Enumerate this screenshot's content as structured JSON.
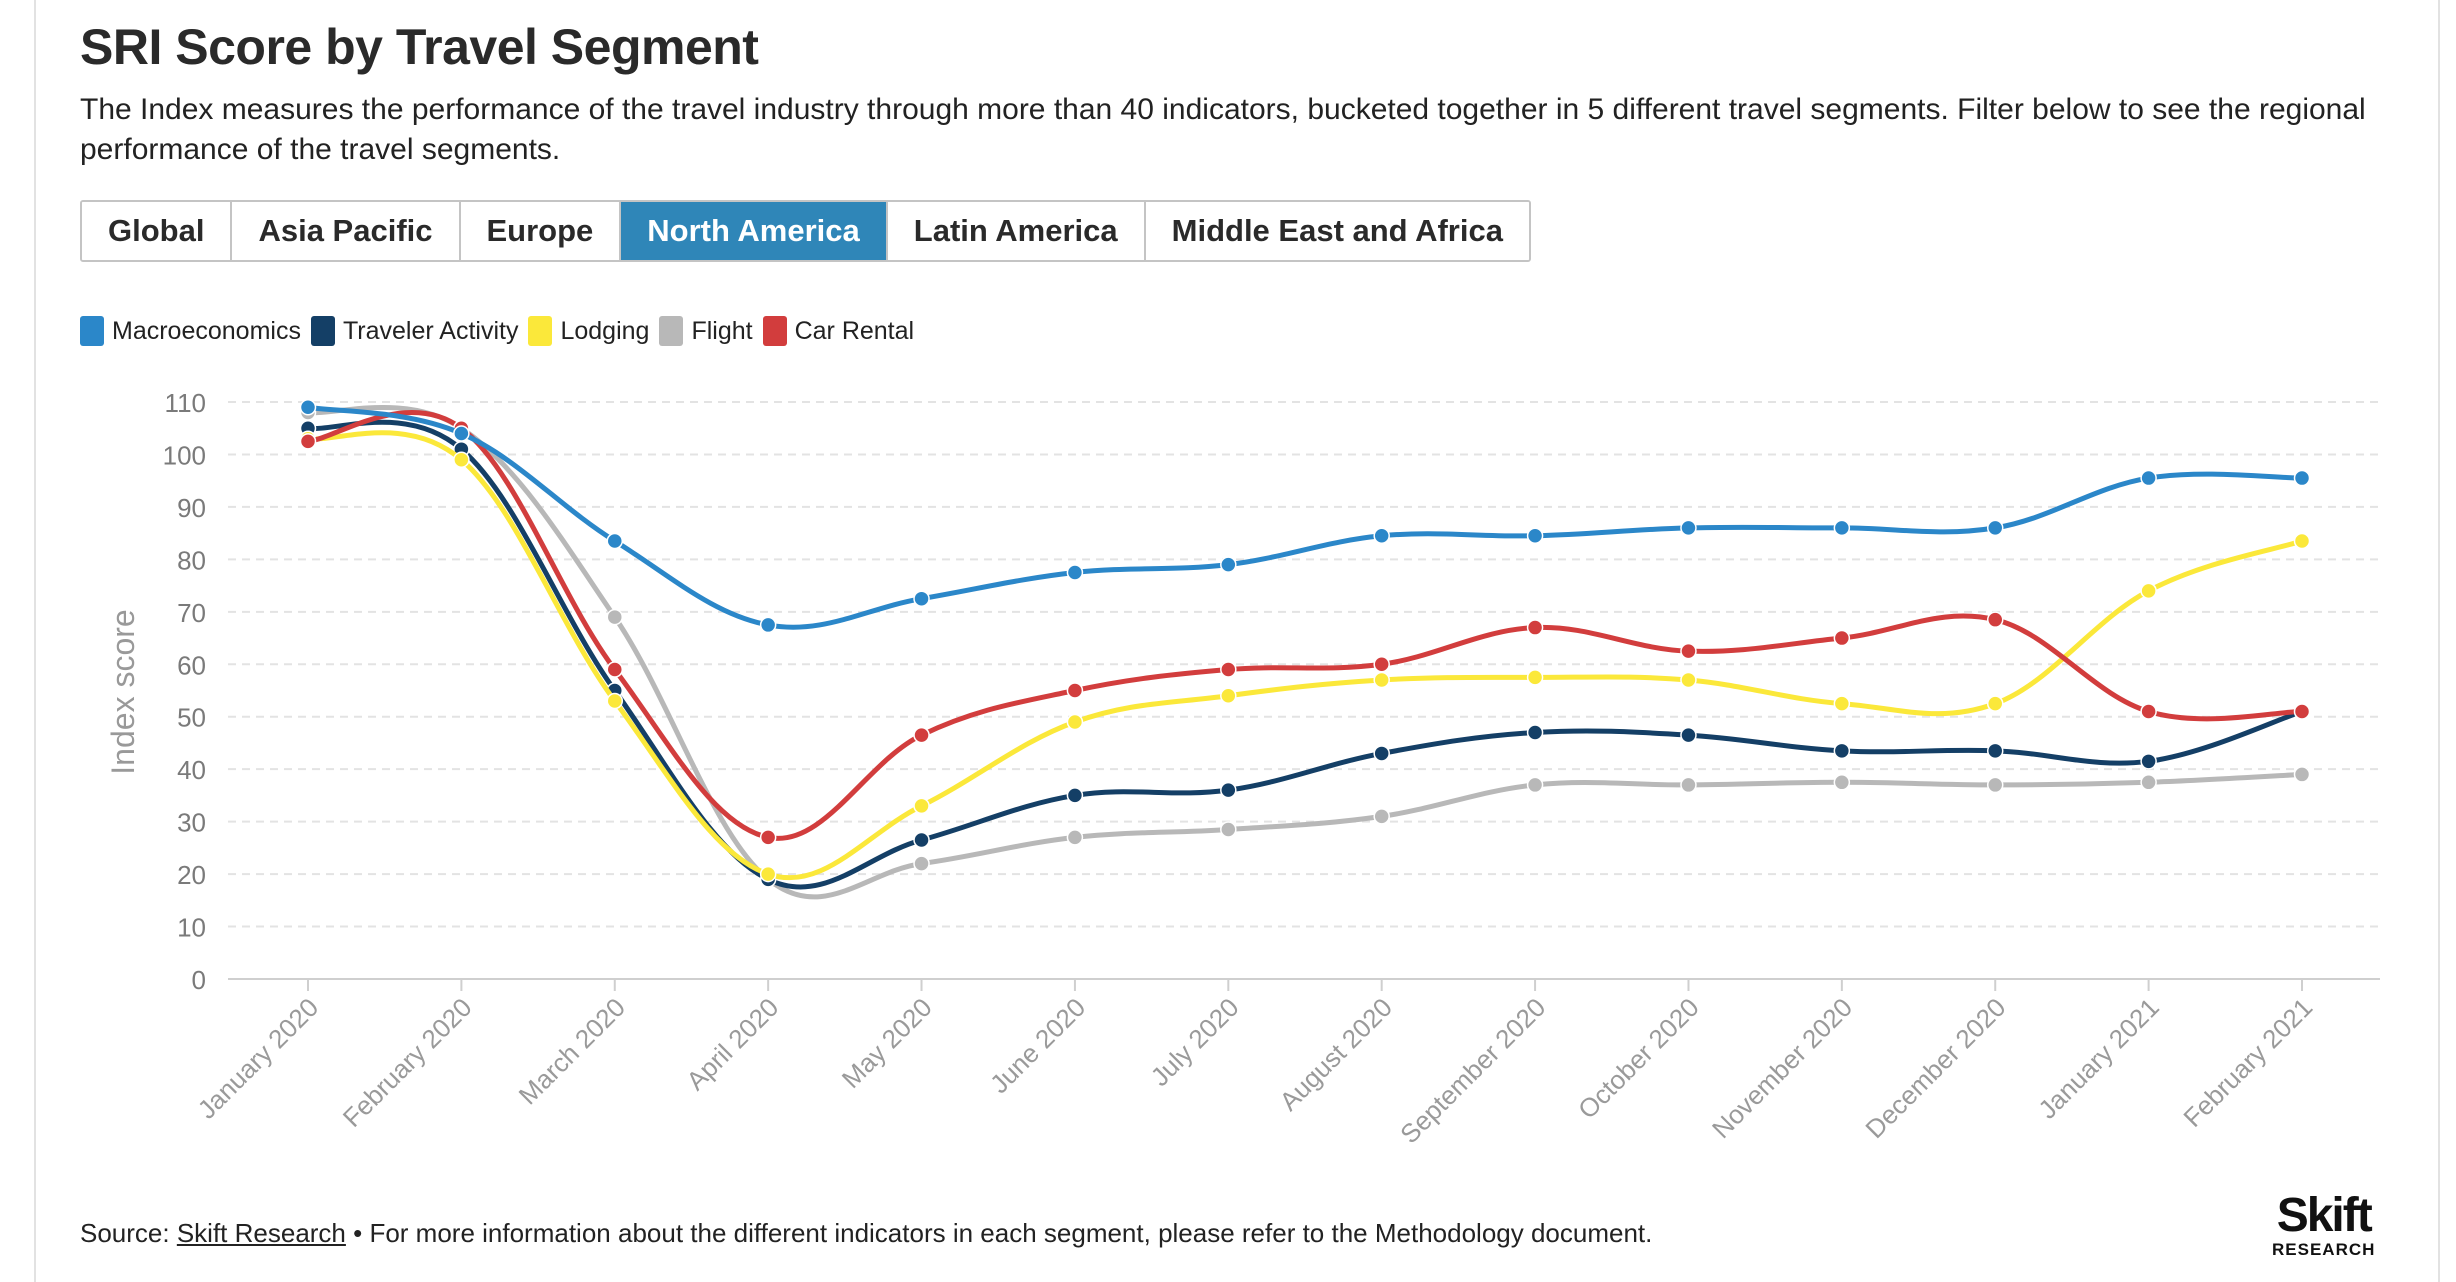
{
  "title": "SRI Score by Travel Segment",
  "subtitle": "The Index measures the performance of the travel industry through more than 40 indicators, bucketed together in 5 different travel segments. Filter below to see the regional performance of the travel segments.",
  "tabs": [
    {
      "label": "Global",
      "active": false
    },
    {
      "label": "Asia Pacific",
      "active": false
    },
    {
      "label": "Europe",
      "active": false
    },
    {
      "label": "North America",
      "active": true
    },
    {
      "label": "Latin America",
      "active": false
    },
    {
      "label": "Middle East and Africa",
      "active": false
    }
  ],
  "footer": {
    "source_prefix": "Source: ",
    "source_link": "Skift Research",
    "source_suffix": " • For more information about the different indicators in each segment, please refer to the Methodology document."
  },
  "logo": {
    "word": "Skift",
    "sub": "RESEARCH"
  },
  "chart_data": {
    "type": "line",
    "ylabel": "Index score",
    "ylim": [
      0,
      110
    ],
    "yticks": [
      0,
      10,
      20,
      30,
      40,
      50,
      60,
      70,
      80,
      90,
      100,
      110
    ],
    "grid": true,
    "categories": [
      "January 2020",
      "February 2020",
      "March 2020",
      "April 2020",
      "May 2020",
      "June 2020",
      "July 2020",
      "August 2020",
      "September 2020",
      "October 2020",
      "November 2020",
      "December 2020",
      "January 2021",
      "February 2021"
    ],
    "series": [
      {
        "name": "Flight",
        "color": "#b8b8b8",
        "values": [
          108,
          105,
          69,
          19,
          22,
          27,
          28.5,
          31,
          37,
          37,
          37.5,
          37,
          37.5,
          39
        ]
      },
      {
        "name": "Traveler Activity",
        "color": "#143f66",
        "values": [
          105,
          101,
          55,
          19,
          26.5,
          35,
          36,
          43,
          47,
          46.5,
          43.5,
          43.5,
          41.5,
          51
        ]
      },
      {
        "name": "Lodging",
        "color": "#fbe83a",
        "values": [
          103,
          99,
          53,
          20,
          33,
          49,
          54,
          57,
          57.5,
          57,
          52.5,
          52.5,
          74,
          83.5
        ]
      },
      {
        "name": "Car Rental",
        "color": "#d23d3d",
        "values": [
          102.5,
          105,
          59,
          27,
          46.5,
          55,
          59,
          60,
          67,
          62.5,
          65,
          68.5,
          51,
          51
        ]
      },
      {
        "name": "Macroeconomics",
        "color": "#2b87c9",
        "values": [
          109,
          104,
          83.5,
          67.5,
          72.5,
          77.5,
          79,
          84.5,
          84.5,
          86,
          86,
          86,
          95.5,
          95.5
        ]
      }
    ],
    "legend": [
      {
        "name": "Macroeconomics",
        "color": "#2b87c9"
      },
      {
        "name": "Traveler Activity",
        "color": "#143f66"
      },
      {
        "name": "Lodging",
        "color": "#fbe83a"
      },
      {
        "name": "Flight",
        "color": "#b8b8b8"
      },
      {
        "name": "Car Rental",
        "color": "#d23d3d"
      }
    ]
  }
}
